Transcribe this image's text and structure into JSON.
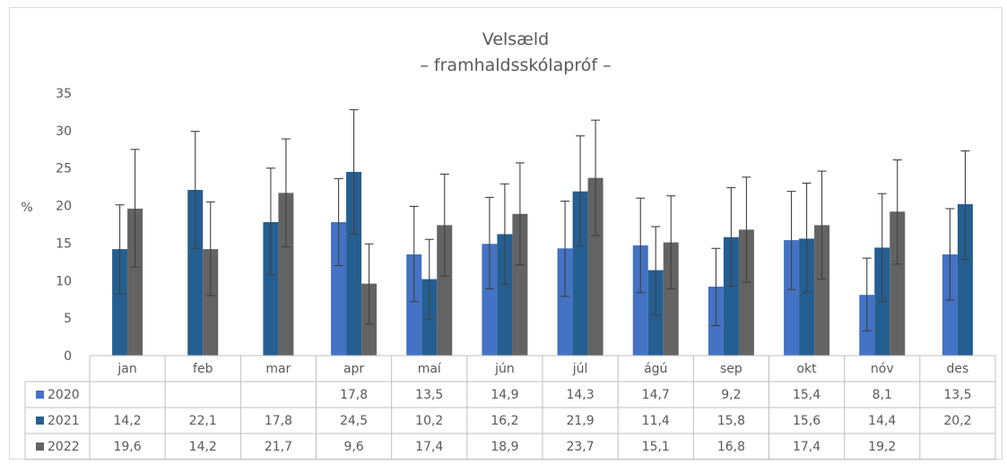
{
  "chart_data": {
    "type": "bar",
    "title": "Velsæld",
    "subtitle": "– framhaldsskólapróf –",
    "ylabel": "%",
    "ylim": [
      0,
      35
    ],
    "yticks": [
      "0",
      "5",
      "10",
      "15",
      "20",
      "25",
      "30",
      "35"
    ],
    "categories": [
      "jan",
      "feb",
      "mar",
      "apr",
      "maí",
      "jún",
      "júl",
      "ágú",
      "sep",
      "okt",
      "nóv",
      "des"
    ],
    "series": [
      {
        "name": "2020",
        "color": "#4472c4",
        "values": [
          null,
          null,
          null,
          17.8,
          13.5,
          14.9,
          14.3,
          14.7,
          9.2,
          15.4,
          8.1,
          13.5
        ],
        "labels": [
          "",
          "",
          "",
          "17,8",
          "13,5",
          "14,9",
          "14,3",
          "14,7",
          "9,2",
          "15,4",
          "8,1",
          "13,5"
        ],
        "error_low": [
          null,
          null,
          null,
          12.0,
          7.2,
          8.9,
          7.9,
          8.4,
          4.0,
          8.8,
          3.3,
          7.4
        ],
        "error_high": [
          null,
          null,
          null,
          23.6,
          19.9,
          21.1,
          20.6,
          21.0,
          14.3,
          21.9,
          13.0,
          19.6
        ]
      },
      {
        "name": "2021",
        "color": "#255e91",
        "values": [
          14.2,
          22.1,
          17.8,
          24.5,
          10.2,
          16.2,
          21.9,
          11.4,
          15.8,
          15.6,
          14.4,
          20.2
        ],
        "labels": [
          "14,2",
          "22,1",
          "17,8",
          "24,5",
          "10,2",
          "16,2",
          "21,9",
          "11,4",
          "15,8",
          "15,6",
          "14,4",
          "20,2"
        ],
        "error_low": [
          8.2,
          14.3,
          10.8,
          16.2,
          4.8,
          9.5,
          14.6,
          5.4,
          9.3,
          8.4,
          7.2,
          12.8
        ],
        "error_high": [
          20.1,
          29.9,
          25.0,
          32.8,
          15.5,
          22.9,
          29.3,
          17.2,
          22.4,
          23.0,
          21.6,
          27.3
        ]
      },
      {
        "name": "2022",
        "color": "#636363",
        "values": [
          19.6,
          14.2,
          21.7,
          9.6,
          17.4,
          18.9,
          23.7,
          15.1,
          16.8,
          17.4,
          19.2,
          null
        ],
        "labels": [
          "19,6",
          "14,2",
          "21,7",
          "9,6",
          "17,4",
          "18,9",
          "23,7",
          "15,1",
          "16,8",
          "17,4",
          "19,2",
          ""
        ],
        "error_low": [
          11.8,
          8.0,
          14.5,
          4.2,
          10.6,
          12.1,
          16.0,
          8.9,
          9.8,
          10.2,
          12.2,
          null
        ],
        "error_high": [
          27.5,
          20.5,
          28.9,
          14.9,
          24.2,
          25.7,
          31.4,
          21.3,
          23.8,
          24.6,
          26.1,
          null
        ]
      }
    ],
    "grid": false,
    "legend": "data-table"
  }
}
